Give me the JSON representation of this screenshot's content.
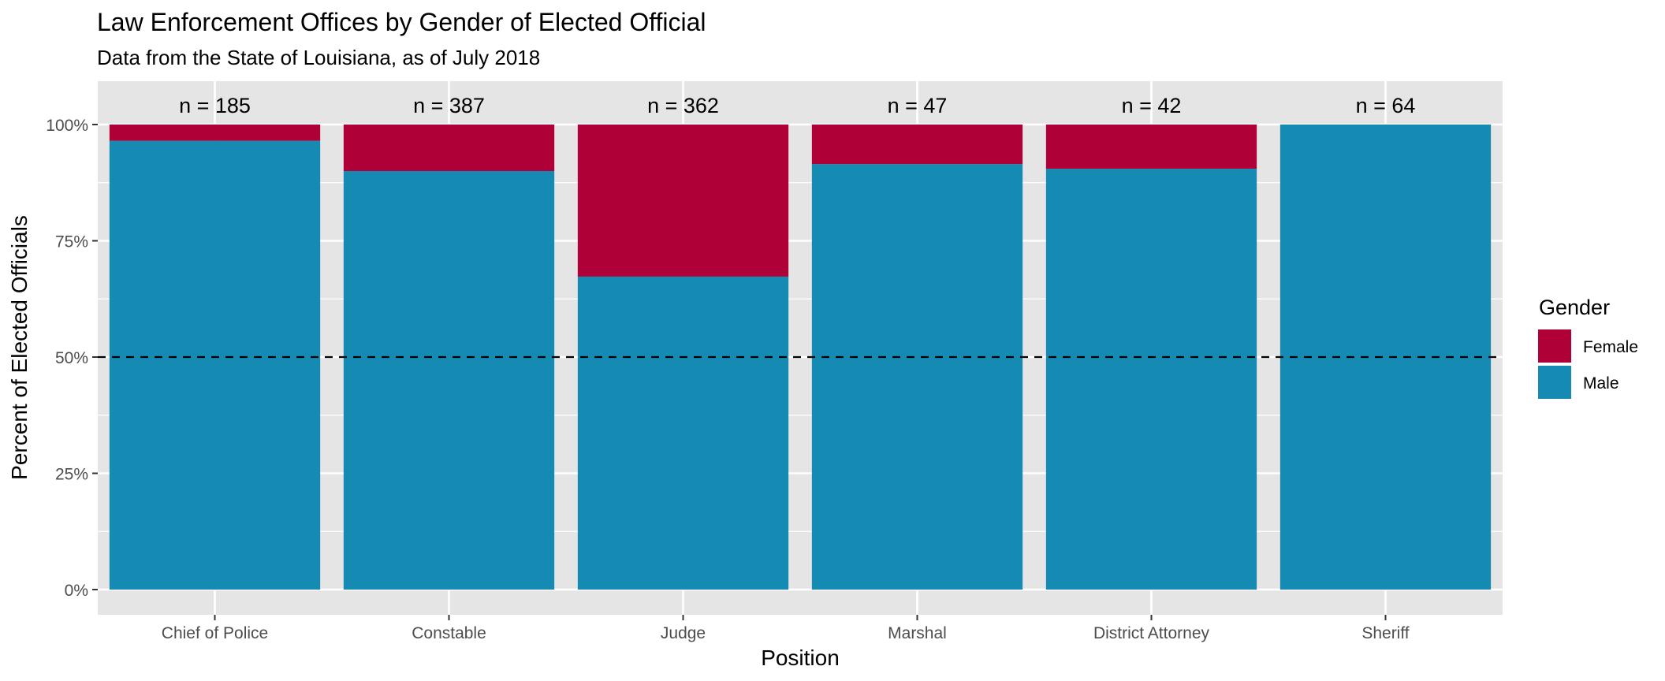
{
  "chart_data": {
    "type": "bar",
    "stacked": true,
    "title": "Law Enforcement Offices by Gender of Elected Official",
    "subtitle": "Data from the State of Louisiana, as of July 2018",
    "xlabel": "Position",
    "ylabel": "Percent of Elected Officials",
    "ylim": [
      0,
      1
    ],
    "yticks": [
      "0%",
      "25%",
      "50%",
      "75%",
      "100%"
    ],
    "ytick_values": [
      0,
      0.25,
      0.5,
      0.75,
      1.0
    ],
    "categories": [
      "Chief of Police",
      "Constable",
      "Judge",
      "Marshal",
      "District Attorney",
      "Sheriff"
    ],
    "bar_labels": [
      "n = 185",
      "n = 387",
      "n = 362",
      "n = 47",
      "n = 42",
      "n = 64"
    ],
    "series": [
      {
        "name": "Male",
        "color": "#158BB4",
        "values": [
          0.965,
          0.9,
          0.673,
          0.915,
          0.905,
          1.0
        ]
      },
      {
        "name": "Female",
        "color": "#AF0038",
        "values": [
          0.035,
          0.1,
          0.327,
          0.085,
          0.095,
          0.0
        ]
      }
    ],
    "reference_line": {
      "y": 0.5,
      "style": "dashed"
    },
    "grid": true,
    "legend": {
      "title": "Gender",
      "position": "right",
      "entries": [
        {
          "label": "Female",
          "color": "#AF0038"
        },
        {
          "label": "Male",
          "color": "#158BB4"
        }
      ]
    },
    "panel_background": "#E5E5E5",
    "gridline_color": "#FFFFFF"
  }
}
